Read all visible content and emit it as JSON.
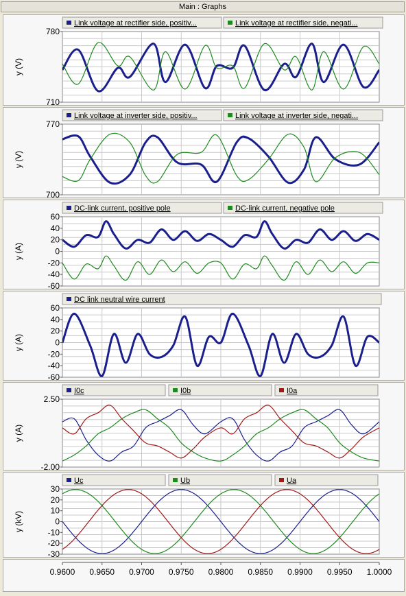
{
  "window": {
    "title": "Main : Graphs"
  },
  "x_axis": {
    "ticks": [
      "0.9600",
      "0.9650",
      "0.9700",
      "0.9750",
      "0.9800",
      "0.9850",
      "0.9900",
      "0.9950",
      "1.0000"
    ]
  },
  "colors": {
    "blue": "#1a1f8c",
    "green": "#1e8a1e",
    "red": "#a01818",
    "grid": "#c9c9c9",
    "legend_bg": "#ecebe3"
  },
  "chart_data": [
    {
      "type": "line",
      "ylabel": "y (V)",
      "ylim": [
        710,
        780
      ],
      "yticks": [
        "780",
        "710"
      ],
      "series": [
        {
          "name": "Link voltage at rectifier side, positiv...",
          "color": "blue",
          "x": [
            0.96,
            0.962,
            0.9645,
            0.967,
            0.9685,
            0.9715,
            0.973,
            0.9755,
            0.978,
            0.9795,
            0.9815,
            0.983,
            0.9855,
            0.988,
            0.9895,
            0.9915,
            0.993,
            0.9955,
            0.998,
            1.0
          ],
          "y": [
            742,
            762,
            721,
            744,
            735,
            768,
            730,
            767,
            724,
            746,
            744,
            766,
            722,
            748,
            735,
            768,
            730,
            767,
            725,
            742
          ]
        },
        {
          "name": "Link voltage at rectifier side, negati...",
          "color": "green",
          "x": [
            0.96,
            0.962,
            0.9645,
            0.967,
            0.9685,
            0.9715,
            0.973,
            0.9755,
            0.978,
            0.9795,
            0.9815,
            0.983,
            0.9855,
            0.988,
            0.9895,
            0.9915,
            0.993,
            0.9955,
            0.998,
            1.0
          ],
          "y": [
            748,
            728,
            769,
            746,
            755,
            722,
            760,
            723,
            766,
            744,
            746,
            724,
            768,
            742,
            755,
            722,
            760,
            723,
            765,
            748
          ]
        }
      ]
    },
    {
      "type": "line",
      "ylabel": "y (V)",
      "ylim": [
        700,
        770
      ],
      "yticks": [
        "770",
        "700"
      ],
      "series": [
        {
          "name": "Link voltage at inverter side, positiv...",
          "color": "blue",
          "x": [
            0.96,
            0.962,
            0.9635,
            0.966,
            0.9685,
            0.9705,
            0.972,
            0.9745,
            0.9775,
            0.9795,
            0.982,
            0.9835,
            0.986,
            0.9885,
            0.9905,
            0.992,
            0.9945,
            0.9975,
            1.0
          ],
          "y": [
            755,
            758,
            738,
            712,
            720,
            752,
            757,
            732,
            730,
            713,
            752,
            756,
            738,
            712,
            725,
            757,
            735,
            730,
            752
          ]
        },
        {
          "name": "Link voltage at inverter side, negati...",
          "color": "green",
          "x": [
            0.96,
            0.962,
            0.9635,
            0.966,
            0.9685,
            0.9705,
            0.972,
            0.9745,
            0.9775,
            0.9795,
            0.982,
            0.9835,
            0.986,
            0.9885,
            0.9905,
            0.992,
            0.9945,
            0.9975,
            1.0
          ],
          "y": [
            718,
            714,
            735,
            760,
            752,
            719,
            713,
            740,
            742,
            759,
            719,
            715,
            735,
            760,
            747,
            713,
            737,
            742,
            720
          ]
        }
      ]
    },
    {
      "type": "line",
      "ylabel": "y (A)",
      "ylim": [
        -60,
        60
      ],
      "yticks": [
        "60",
        "40",
        "20",
        "0",
        "-20",
        "-40",
        "-60"
      ],
      "series": [
        {
          "name": "DC-link current, positive pole",
          "color": "blue",
          "x": [
            0.96,
            0.9615,
            0.963,
            0.9645,
            0.9655,
            0.9665,
            0.968,
            0.9695,
            0.971,
            0.9725,
            0.974,
            0.9755,
            0.977,
            0.9785,
            0.98,
            0.9815,
            0.983,
            0.9845,
            0.9855,
            0.9865,
            0.988,
            0.9895,
            0.991,
            0.9925,
            0.994,
            0.9955,
            0.997,
            0.9985,
            1.0
          ],
          "y": [
            20,
            8,
            28,
            25,
            52,
            30,
            5,
            20,
            15,
            38,
            20,
            35,
            18,
            30,
            20,
            8,
            28,
            25,
            52,
            30,
            5,
            20,
            15,
            38,
            20,
            35,
            18,
            30,
            20
          ]
        },
        {
          "name": "DC-link current, negative pole",
          "color": "green",
          "x": [
            0.96,
            0.9615,
            0.963,
            0.9645,
            0.9655,
            0.9665,
            0.968,
            0.9695,
            0.971,
            0.9725,
            0.974,
            0.9755,
            0.977,
            0.9785,
            0.98,
            0.9815,
            0.983,
            0.9845,
            0.9855,
            0.9865,
            0.988,
            0.9895,
            0.991,
            0.9925,
            0.994,
            0.9955,
            0.997,
            0.9985,
            1.0
          ],
          "y": [
            -20,
            -48,
            -22,
            -30,
            -8,
            -25,
            -50,
            -18,
            -40,
            -15,
            -35,
            -18,
            -38,
            -20,
            -20,
            -48,
            -22,
            -30,
            -8,
            -25,
            -50,
            -18,
            -40,
            -15,
            -35,
            -18,
            -38,
            -20,
            -20
          ]
        }
      ]
    },
    {
      "type": "line",
      "ylabel": "y (A)",
      "ylim": [
        -60,
        60
      ],
      "yticks": [
        "60",
        "40",
        "20",
        "0",
        "-20",
        "-40",
        "-60"
      ],
      "series": [
        {
          "name": "DC link neutral wire current",
          "color": "blue",
          "x": [
            0.96,
            0.9615,
            0.9635,
            0.965,
            0.9665,
            0.968,
            0.9695,
            0.971,
            0.9725,
            0.974,
            0.9755,
            0.977,
            0.9785,
            0.98,
            0.9815,
            0.9835,
            0.985,
            0.9865,
            0.988,
            0.9895,
            0.991,
            0.9925,
            0.994,
            0.9955,
            0.997,
            0.9985,
            1.0
          ],
          "y": [
            0,
            50,
            -5,
            -58,
            15,
            -35,
            15,
            -20,
            -25,
            -5,
            45,
            -40,
            10,
            0,
            50,
            -5,
            -58,
            15,
            -35,
            15,
            -20,
            -25,
            -5,
            45,
            -40,
            10,
            0
          ]
        }
      ]
    },
    {
      "type": "line",
      "ylabel": "y (A)",
      "ylim": [
        -2,
        2.5
      ],
      "yticks": [
        "2.50",
        "-2.00"
      ],
      "series": [
        {
          "name": "I0c",
          "color": "blue",
          "x": [
            0.96,
            0.9615,
            0.963,
            0.9645,
            0.966,
            0.9675,
            0.969,
            0.9705,
            0.972,
            0.9735,
            0.975,
            0.9765,
            0.978,
            0.98,
            0.9815,
            0.983,
            0.9845,
            0.986,
            0.9875,
            0.989,
            0.9905,
            0.992,
            0.9935,
            0.995,
            0.9965,
            0.998,
            1.0
          ],
          "y": [
            1.0,
            1.2,
            -0.2,
            -1.2,
            -1.6,
            -1.0,
            -0.6,
            0.6,
            1.0,
            1.4,
            1.8,
            0.8,
            0.2,
            1.0,
            1.2,
            -0.2,
            -1.2,
            -1.6,
            -1.0,
            -0.6,
            0.6,
            1.0,
            1.4,
            1.8,
            0.8,
            0.2,
            1.0
          ]
        },
        {
          "name": "I0b",
          "color": "green",
          "x": [
            0.96,
            0.9615,
            0.963,
            0.9645,
            0.966,
            0.9675,
            0.969,
            0.9705,
            0.972,
            0.9735,
            0.975,
            0.9765,
            0.978,
            0.98,
            0.9815,
            0.983,
            0.9845,
            0.986,
            0.9875,
            0.989,
            0.9905,
            0.992,
            0.9935,
            0.995,
            0.9965,
            0.998,
            1.0
          ],
          "y": [
            -1.6,
            -1.2,
            -0.6,
            0.2,
            0.6,
            1.2,
            1.6,
            1.8,
            1.2,
            0.6,
            -0.4,
            -1.0,
            -1.4,
            -1.6,
            -1.2,
            -0.6,
            0.2,
            0.6,
            1.2,
            1.6,
            1.8,
            1.2,
            0.6,
            -0.4,
            -1.0,
            -1.4,
            -1.6
          ]
        },
        {
          "name": "I0a",
          "color": "red",
          "x": [
            0.96,
            0.9615,
            0.963,
            0.9645,
            0.966,
            0.9675,
            0.969,
            0.9705,
            0.972,
            0.9735,
            0.975,
            0.9765,
            0.978,
            0.98,
            0.9815,
            0.983,
            0.9845,
            0.986,
            0.9875,
            0.989,
            0.9905,
            0.992,
            0.9935,
            0.995,
            0.9965,
            0.998,
            1.0
          ],
          "y": [
            0.6,
            0.2,
            1.2,
            1.6,
            2.1,
            1.2,
            0.4,
            -0.4,
            -0.6,
            -1.0,
            -1.4,
            -0.8,
            0.0,
            0.6,
            0.2,
            1.2,
            1.6,
            2.1,
            1.2,
            0.4,
            -0.4,
            -0.6,
            -1.0,
            -1.4,
            -0.8,
            0.0,
            0.6
          ]
        }
      ]
    },
    {
      "type": "line",
      "ylabel": "y (kV)",
      "ylim": [
        -30,
        30
      ],
      "yticks": [
        "30",
        "20",
        "10",
        "0",
        "-10",
        "-20",
        "-30"
      ],
      "series": [
        {
          "name": "Uc",
          "color": "blue",
          "sine": {
            "amplitude": 29.5,
            "period": 0.02,
            "phase_deg": 180
          }
        },
        {
          "name": "Ub",
          "color": "green",
          "sine": {
            "amplitude": 29.5,
            "period": 0.02,
            "phase_deg": 60
          }
        },
        {
          "name": "Ua",
          "color": "red",
          "sine": {
            "amplitude": 29.5,
            "period": 0.02,
            "phase_deg": -60
          }
        }
      ]
    }
  ]
}
